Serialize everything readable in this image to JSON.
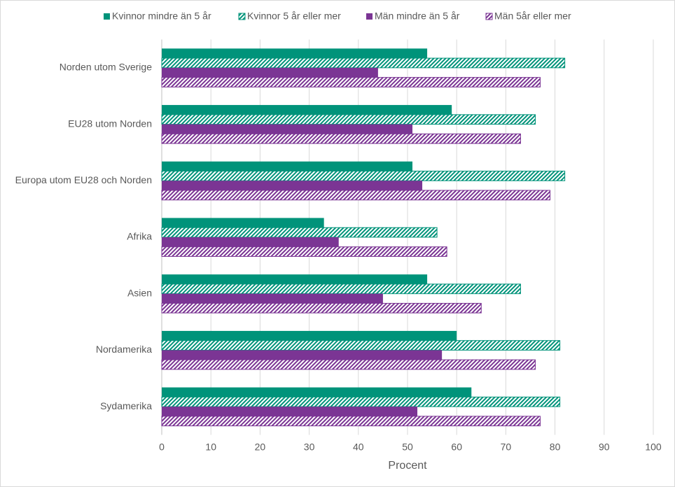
{
  "chart_data": {
    "type": "hbar",
    "x_label": "Procent",
    "categories": [
      "Norden utom Sverige",
      "EU28 utom Norden",
      "Europa utom EU28 och Norden",
      "Afrika",
      "Asien",
      "Nordamerika",
      "Sydamerika"
    ],
    "series": [
      {
        "name": "Kvinnor mindre än 5 år",
        "color": "#00937a",
        "hatched": false,
        "values": [
          54,
          59,
          51,
          33,
          54,
          60,
          63
        ]
      },
      {
        "name": "Kvinnor 5 år eller mer",
        "color": "#00937a",
        "hatched": true,
        "values": [
          82,
          76,
          82,
          56,
          73,
          81,
          81
        ]
      },
      {
        "name": "Män mindre än 5 år",
        "color": "#7b3594",
        "hatched": false,
        "values": [
          44,
          51,
          53,
          36,
          45,
          57,
          52
        ]
      },
      {
        "name": "Män 5år eller mer",
        "color": "#7b3594",
        "hatched": true,
        "values": [
          77,
          73,
          79,
          58,
          65,
          76,
          77
        ]
      }
    ],
    "xlim": [
      0,
      100
    ],
    "xticks": [
      0,
      10,
      20,
      30,
      40,
      50,
      60,
      70,
      80,
      90,
      100
    ],
    "grid": true,
    "legend": "top"
  }
}
